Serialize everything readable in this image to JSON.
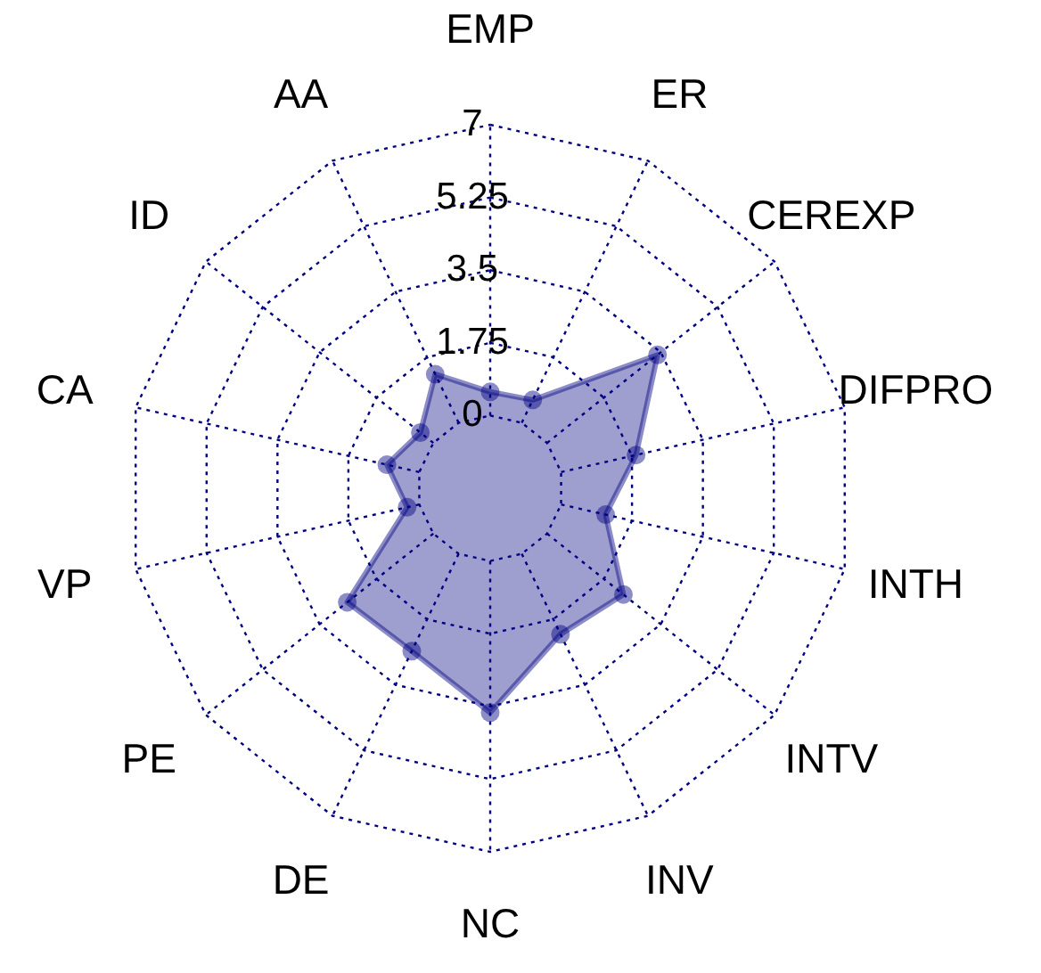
{
  "chart_data": {
    "type": "radar",
    "categories": [
      "EMP",
      "ER",
      "CEREXP",
      "DIFPRO",
      "INTH",
      "INTV",
      "INV",
      "NC",
      "DE",
      "PE",
      "VP",
      "CA",
      "ID",
      "AA"
    ],
    "series": [
      {
        "color": "#000080",
        "values": [
          0.57,
          0.61,
          3.4,
          1.85,
          1.1,
          2.35,
          2.15,
          3.65,
          2.6,
          2.65,
          0.3,
          0.8,
          0.4,
          1.3
        ]
      }
    ],
    "ylim": [
      -1.75,
      7
    ],
    "yticks": [
      0,
      1.75,
      3.5,
      5.25,
      7
    ],
    "grid": true,
    "marker": "circle"
  }
}
